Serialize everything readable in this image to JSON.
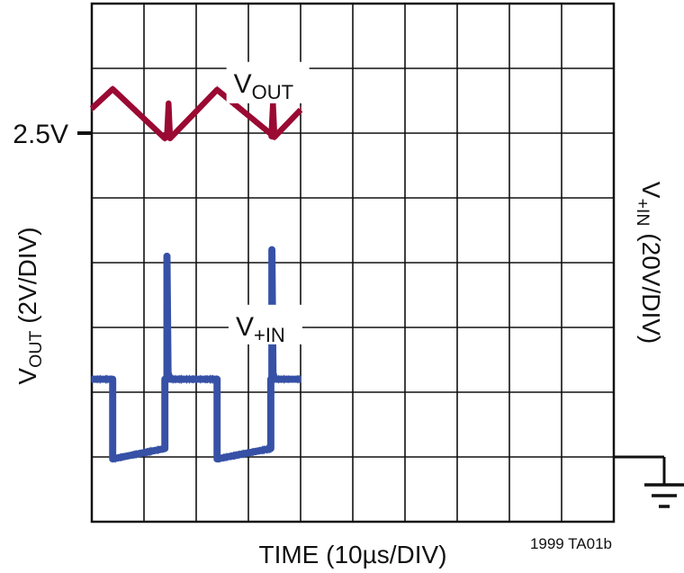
{
  "chart_data": {
    "type": "line",
    "title": "",
    "xlabel": "TIME (10µs/DIV)",
    "ylabel_left": {
      "main": "V",
      "sub": "OUT",
      "rest": " (2V/DIV)"
    },
    "ylabel_right": {
      "main": "V",
      "sub": "+IN",
      "rest": " (20V/DIV)"
    },
    "x_divisions": 10,
    "y_divisions": 8,
    "x_unit": "µs",
    "x_per_div": 10,
    "ylim_div": [
      0,
      8
    ],
    "ref_marker": {
      "label": "2.5V",
      "level_div": 6
    },
    "ground_marker": {
      "level_div": 1
    },
    "footnote": "1999 TA01b",
    "grid": true,
    "series": [
      {
        "name": "VOUT",
        "label": {
          "main": "V",
          "sub": "OUT"
        },
        "color": "#9a0a33",
        "noise_div": 0.09,
        "points": [
          [
            0,
            6.38
          ],
          [
            4,
            6.68
          ],
          [
            14,
            5.92
          ],
          [
            14.4,
            5.95
          ],
          [
            14.7,
            6.46
          ],
          [
            15.0,
            5.92
          ],
          [
            24,
            6.67
          ],
          [
            35,
            5.94
          ],
          [
            34.4,
            5.95
          ],
          [
            34.7,
            6.46
          ],
          [
            35.0,
            5.94
          ],
          [
            40,
            6.36
          ]
        ]
      },
      {
        "name": "V+IN",
        "label": {
          "main": "V",
          "sub": "+IN"
        },
        "color": "#3651a6",
        "noise_div": 0.11,
        "points": [
          [
            0,
            2.2
          ],
          [
            4,
            2.2
          ],
          [
            4,
            0.97
          ],
          [
            14,
            1.13
          ],
          [
            14,
            2.2
          ],
          [
            14.4,
            2.2
          ],
          [
            14.4,
            4.1
          ],
          [
            14.6,
            2.3
          ],
          [
            15.0,
            2.2
          ],
          [
            24,
            2.2
          ],
          [
            24,
            0.97
          ],
          [
            34.3,
            1.13
          ],
          [
            34.3,
            2.2
          ],
          [
            34.5,
            2.2
          ],
          [
            34.5,
            4.2
          ],
          [
            34.7,
            2.3
          ],
          [
            35.0,
            2.2
          ],
          [
            40,
            2.2
          ]
        ]
      }
    ]
  }
}
